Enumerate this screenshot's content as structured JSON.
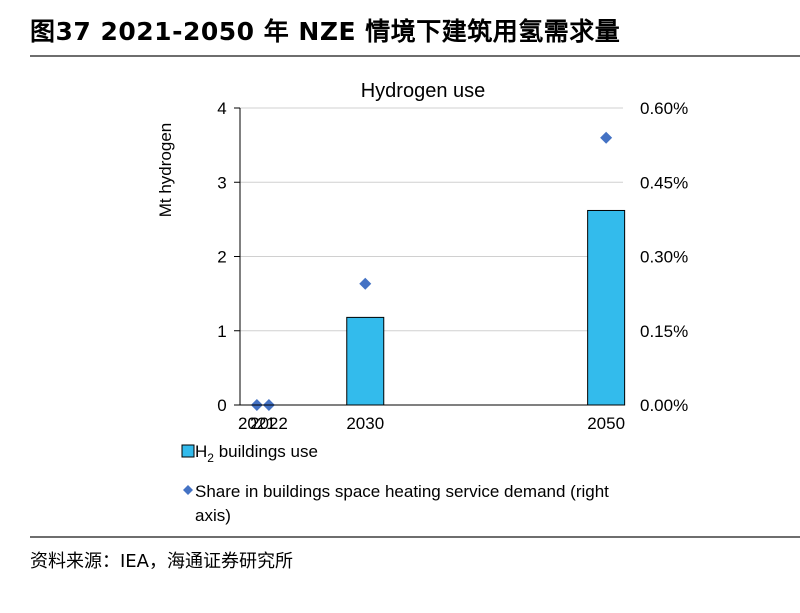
{
  "figure": {
    "title": "图37 2021-2050 年 NZE 情境下建筑用氢需求量",
    "source": "资料来源：IEA，海通证券研究所"
  },
  "chart_data": {
    "type": "bar",
    "title": "Hydrogen use",
    "categories": [
      "2021",
      "2022",
      "2030",
      "2050"
    ],
    "x_positions": [
      2021,
      2022,
      2030,
      2050
    ],
    "ylabel": "Mt hydrogen",
    "ylim": [
      0,
      4
    ],
    "yticks": [
      "0",
      "1",
      "2",
      "3",
      "4"
    ],
    "y2lim": [
      0,
      0.6
    ],
    "y2ticks": [
      "0.00%",
      "0.15%",
      "0.30%",
      "0.45%",
      "0.60%"
    ],
    "grid": true,
    "legend_position": "bottom",
    "series": [
      {
        "name": "H2 buildings use",
        "name_main": "H",
        "name_sub": "2",
        "name_rest": " buildings use",
        "kind": "bar",
        "axis": "left",
        "color": "#33bbec",
        "values": [
          0,
          0,
          1.18,
          2.62
        ]
      },
      {
        "name": "Share in buildings space heating service demand (right axis)",
        "legend_line1": "Share in buildings space heating service demand (right",
        "legend_line2": "axis)",
        "kind": "scatter",
        "marker": "diamond",
        "axis": "right",
        "color": "#4472c4",
        "values": [
          0.0,
          0.0,
          0.245,
          0.54
        ]
      }
    ]
  }
}
